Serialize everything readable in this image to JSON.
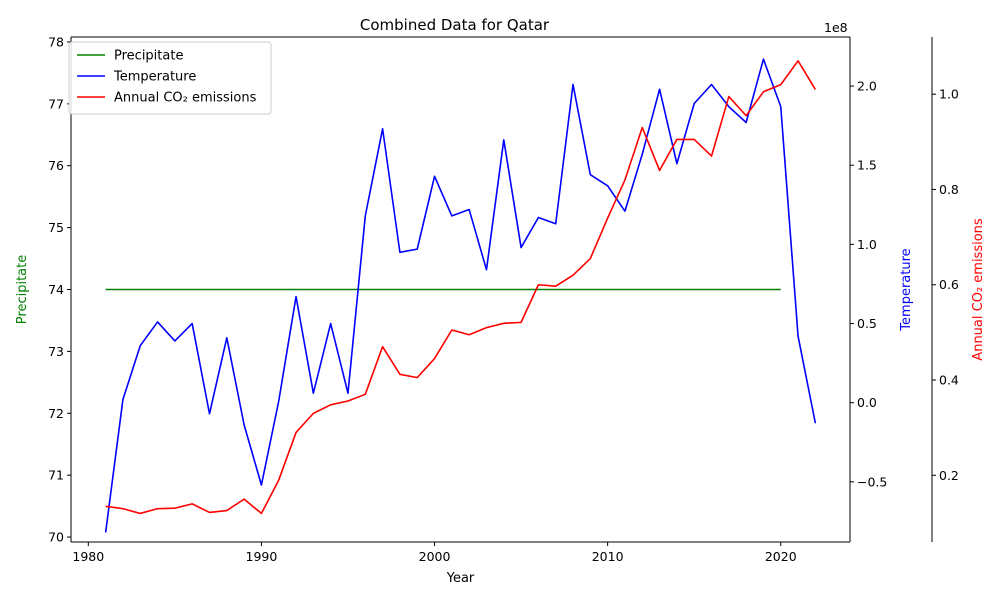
{
  "chart_data": {
    "type": "line",
    "title": "Combined Data for Qatar",
    "xlabel": "Year",
    "xlim": [
      1979,
      2024
    ],
    "x_ticks": [
      1980,
      1990,
      2000,
      2010,
      2020
    ],
    "axes": [
      {
        "id": "precipitate",
        "label": "Precipitate",
        "color": "#008000",
        "ylim": [
          69.92,
          78.08
        ],
        "ticks": [
          70,
          71,
          72,
          73,
          74,
          75,
          76,
          77,
          78
        ],
        "tick_labels": [
          "70",
          "71",
          "72",
          "73",
          "74",
          "75",
          "76",
          "77",
          "78"
        ]
      },
      {
        "id": "temperature",
        "label": "Temperature",
        "color": "#0000ff",
        "offset_text": "1e8",
        "ylim": [
          -0.88,
          2.31
        ],
        "ticks": [
          -0.5,
          0.0,
          0.5,
          1.0,
          1.5,
          2.0
        ],
        "tick_labels": [
          "−0.5",
          "0.0",
          "0.5",
          "1.0",
          "1.5",
          "2.0"
        ]
      },
      {
        "id": "co2",
        "label": "Annual CO₂ emissions",
        "color": "#ff0000",
        "ylim": [
          0.06,
          1.12
        ],
        "ticks": [
          0.2,
          0.4,
          0.6,
          0.8,
          1.0
        ],
        "tick_labels": [
          "0.2",
          "0.4",
          "0.6",
          "0.8",
          "1.0"
        ]
      }
    ],
    "series": [
      {
        "name": "Precipitate",
        "axis": "precipitate",
        "color": "#008000",
        "x": [
          1981,
          2020
        ],
        "y": [
          74,
          74
        ]
      },
      {
        "name": "Temperature",
        "axis": "temperature",
        "color": "#0000ff",
        "x": [
          1981,
          1982,
          1983,
          1984,
          1985,
          1986,
          1987,
          1988,
          1989,
          1990,
          1991,
          1992,
          1993,
          1994,
          1995,
          1996,
          1997,
          1998,
          1999,
          2000,
          2001,
          2002,
          2003,
          2004,
          2005,
          2006,
          2007,
          2008,
          2009,
          2010,
          2011,
          2012,
          2013,
          2014,
          2015,
          2016,
          2017,
          2018,
          2019,
          2020,
          2021,
          2022
        ],
        "y": [
          -0.82,
          0.02,
          0.36,
          0.51,
          0.39,
          0.5,
          -0.07,
          0.41,
          -0.14,
          -0.52,
          0.01,
          0.67,
          0.06,
          0.5,
          0.06,
          1.18,
          1.73,
          0.95,
          0.97,
          1.43,
          1.18,
          1.22,
          0.84,
          1.66,
          0.98,
          1.17,
          1.13,
          2.01,
          1.44,
          1.37,
          1.21,
          1.57,
          1.98,
          1.51,
          1.89,
          2.01,
          1.87,
          1.77,
          2.17,
          1.87,
          0.42,
          -0.13
        ]
      },
      {
        "name": "Annual CO₂ emissions",
        "axis": "co2",
        "color": "#ff0000",
        "x": [
          1981,
          1982,
          1983,
          1984,
          1985,
          1986,
          1987,
          1988,
          1989,
          1990,
          1991,
          1992,
          1993,
          1994,
          1995,
          1996,
          1997,
          1998,
          1999,
          2000,
          2001,
          2002,
          2003,
          2004,
          2005,
          2006,
          2007,
          2008,
          2009,
          2010,
          2011,
          2012,
          2013,
          2014,
          2015,
          2016,
          2017,
          2018,
          2019,
          2020,
          2021,
          2022
        ],
        "y": [
          0.135,
          0.13,
          0.12,
          0.13,
          0.131,
          0.14,
          0.122,
          0.126,
          0.15,
          0.12,
          0.19,
          0.29,
          0.33,
          0.348,
          0.356,
          0.37,
          0.47,
          0.412,
          0.405,
          0.445,
          0.505,
          0.495,
          0.51,
          0.519,
          0.521,
          0.6,
          0.597,
          0.62,
          0.655,
          0.74,
          0.82,
          0.93,
          0.84,
          0.905,
          0.905,
          0.87,
          0.995,
          0.955,
          1.005,
          1.02,
          1.07,
          1.01
        ]
      }
    ],
    "legend": {
      "placement": "top-left",
      "entries": [
        "Precipitate",
        "Temperature",
        "Annual CO₂ emissions"
      ]
    },
    "grid": false
  }
}
